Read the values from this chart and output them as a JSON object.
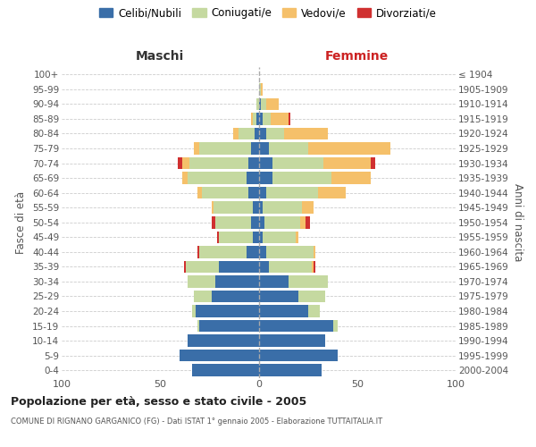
{
  "age_groups": [
    "100+",
    "95-99",
    "90-94",
    "85-89",
    "80-84",
    "75-79",
    "70-74",
    "65-69",
    "60-64",
    "55-59",
    "50-54",
    "45-49",
    "40-44",
    "35-39",
    "30-34",
    "25-29",
    "20-24",
    "15-19",
    "10-14",
    "5-9",
    "0-4"
  ],
  "birth_years": [
    "≤ 1904",
    "1905-1909",
    "1910-1914",
    "1915-1919",
    "1920-1924",
    "1925-1929",
    "1930-1934",
    "1935-1939",
    "1940-1944",
    "1945-1949",
    "1950-1954",
    "1955-1959",
    "1960-1964",
    "1965-1969",
    "1970-1974",
    "1975-1979",
    "1980-1984",
    "1985-1989",
    "1990-1994",
    "1995-1999",
    "2000-2004"
  ],
  "colors": {
    "celibi": "#3a6ea8",
    "coniugati": "#c5d9a0",
    "vedovi": "#f5c06a",
    "divorziati": "#d03030"
  },
  "male": {
    "celibi": [
      0,
      0,
      0,
      1,
      2,
      4,
      5,
      6,
      5,
      3,
      4,
      3,
      6,
      20,
      22,
      24,
      32,
      30,
      36,
      40,
      34
    ],
    "coniugati": [
      0,
      0,
      1,
      2,
      8,
      26,
      30,
      30,
      24,
      20,
      18,
      17,
      24,
      17,
      14,
      9,
      2,
      1,
      0,
      0,
      0
    ],
    "vedovi": [
      0,
      0,
      0,
      1,
      3,
      3,
      4,
      3,
      2,
      1,
      0,
      0,
      0,
      0,
      0,
      0,
      0,
      0,
      0,
      0,
      0
    ],
    "divorziati": [
      0,
      0,
      0,
      0,
      0,
      0,
      2,
      0,
      0,
      0,
      2,
      1,
      1,
      1,
      0,
      0,
      0,
      0,
      0,
      0,
      0
    ]
  },
  "female": {
    "celibi": [
      0,
      0,
      1,
      2,
      4,
      5,
      7,
      7,
      4,
      2,
      3,
      2,
      4,
      5,
      15,
      20,
      25,
      38,
      34,
      40,
      32
    ],
    "coniugati": [
      0,
      1,
      3,
      4,
      9,
      20,
      26,
      30,
      26,
      20,
      18,
      17,
      24,
      22,
      20,
      14,
      6,
      2,
      0,
      0,
      0
    ],
    "vedovi": [
      0,
      1,
      6,
      9,
      22,
      42,
      24,
      20,
      14,
      6,
      3,
      1,
      1,
      1,
      0,
      0,
      0,
      0,
      0,
      0,
      0
    ],
    "divorziati": [
      0,
      0,
      0,
      1,
      0,
      0,
      2,
      0,
      0,
      0,
      2,
      0,
      0,
      1,
      0,
      0,
      0,
      0,
      0,
      0,
      0
    ]
  },
  "title": "Popolazione per età, sesso e stato civile - 2005",
  "subtitle": "COMUNE DI RIGNANO GARGANICO (FG) - Dati ISTAT 1° gennaio 2005 - Elaborazione TUTTAITALIA.IT",
  "xlabel_left": "Maschi",
  "xlabel_right": "Femmine",
  "ylabel_left": "Fasce di età",
  "ylabel_right": "Anni di nascita",
  "legend_labels": [
    "Celibi/Nubili",
    "Coniugati/e",
    "Vedovi/e",
    "Divorziati/e"
  ],
  "xlim": 100,
  "bg_color": "#ffffff",
  "grid_color": "#cccccc"
}
